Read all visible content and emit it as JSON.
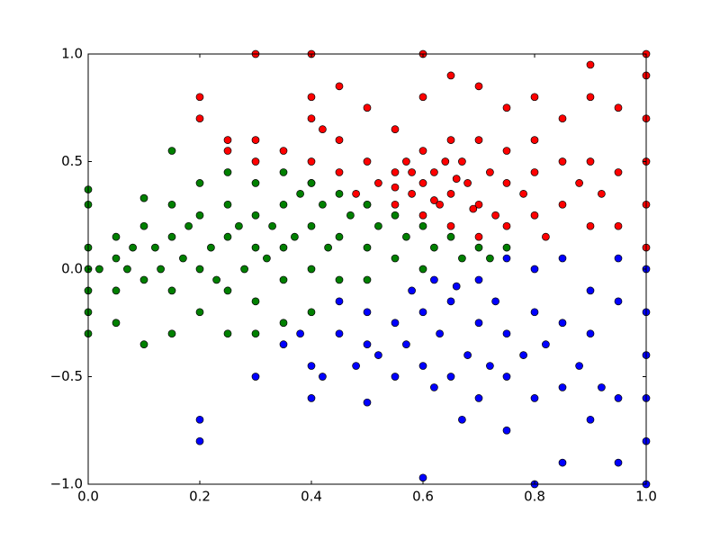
{
  "chart_data": {
    "type": "scatter",
    "xlim": [
      0,
      1
    ],
    "ylim": [
      -1,
      1
    ],
    "xticks": [
      {
        "value": 0,
        "label": "0.0"
      },
      0.2,
      0.4,
      0.6,
      0.8,
      {
        "value": 1,
        "label": "1.0"
      }
    ],
    "yticks": [
      {
        "value": -1,
        "label": "−1.0"
      },
      {
        "value": -0.5,
        "label": "−0.5"
      },
      {
        "value": 0,
        "label": "0.0"
      },
      0.5,
      {
        "value": 1,
        "label": "1.0"
      }
    ],
    "edgecolor": "#000000",
    "series": [
      {
        "color": "#0000ff",
        "x": [
          0.2,
          0.2,
          0.3,
          0.35,
          0.38,
          0.4,
          0.4,
          0.42,
          0.45,
          0.48,
          0.5,
          0.5,
          0.5,
          0.52,
          0.55,
          0.55,
          0.57,
          0.6,
          0.6,
          0.6,
          0.62,
          0.63,
          0.65,
          0.65,
          0.67,
          0.68,
          0.7,
          0.7,
          0.7,
          0.72,
          0.73,
          0.75,
          0.75,
          0.75,
          0.75,
          0.78,
          0.8,
          0.8,
          0.8,
          0.8,
          0.82,
          0.85,
          0.85,
          0.85,
          0.85,
          0.88,
          0.9,
          0.9,
          0.9,
          0.92,
          0.95,
          0.95,
          0.95,
          0.95,
          1.0,
          1.0,
          1.0,
          1.0,
          1.0,
          1.0,
          0.58,
          0.66,
          0.62,
          0.45
        ],
        "values": [
          -0.7,
          -0.8,
          -0.5,
          -0.35,
          -0.3,
          -0.6,
          -0.45,
          -0.5,
          -0.3,
          -0.45,
          -0.62,
          -0.35,
          -0.2,
          -0.4,
          -0.5,
          -0.25,
          -0.35,
          -0.97,
          -0.45,
          -0.2,
          -0.55,
          -0.3,
          -0.5,
          -0.15,
          -0.7,
          -0.4,
          -0.6,
          -0.25,
          -0.05,
          -0.45,
          -0.15,
          -0.75,
          -0.5,
          -0.3,
          0.05,
          -0.4,
          -1.0,
          -0.6,
          -0.2,
          0.0,
          -0.35,
          -0.9,
          -0.55,
          -0.25,
          0.05,
          -0.45,
          -0.7,
          -0.3,
          -0.1,
          -0.55,
          -0.9,
          -0.6,
          -0.15,
          0.05,
          -1.0,
          -0.8,
          -0.6,
          -0.4,
          -0.2,
          0.0,
          -0.1,
          -0.08,
          -0.05,
          -0.15
        ]
      },
      {
        "color": "#ff0000",
        "x": [
          0.2,
          0.2,
          0.25,
          0.25,
          0.3,
          0.3,
          0.3,
          0.35,
          0.4,
          0.4,
          0.4,
          0.4,
          0.4,
          0.42,
          0.45,
          0.45,
          0.45,
          0.48,
          0.5,
          0.5,
          0.5,
          0.52,
          0.55,
          0.55,
          0.55,
          0.57,
          0.58,
          0.6,
          0.6,
          0.6,
          0.6,
          0.6,
          0.62,
          0.63,
          0.65,
          0.65,
          0.65,
          0.65,
          0.67,
          0.68,
          0.7,
          0.7,
          0.7,
          0.7,
          0.72,
          0.73,
          0.75,
          0.75,
          0.75,
          0.75,
          0.78,
          0.8,
          0.8,
          0.8,
          0.8,
          0.82,
          0.85,
          0.85,
          0.85,
          0.88,
          0.9,
          0.9,
          0.9,
          0.9,
          0.92,
          0.95,
          0.95,
          0.95,
          1.0,
          1.0,
          1.0,
          1.0,
          1.0,
          1.0,
          0.55,
          0.62,
          0.66,
          0.69,
          0.58,
          0.64
        ],
        "values": [
          0.8,
          0.7,
          0.6,
          0.55,
          1.0,
          0.6,
          0.5,
          0.55,
          1.0,
          0.8,
          0.7,
          0.5,
          0.4,
          0.65,
          0.85,
          0.6,
          0.45,
          0.35,
          0.75,
          0.5,
          0.3,
          0.4,
          0.65,
          0.45,
          0.3,
          0.5,
          0.35,
          1.0,
          0.8,
          0.55,
          0.4,
          0.25,
          0.45,
          0.3,
          0.9,
          0.6,
          0.35,
          0.2,
          0.5,
          0.4,
          0.85,
          0.6,
          0.3,
          0.15,
          0.45,
          0.25,
          0.75,
          0.55,
          0.4,
          0.2,
          0.35,
          0.8,
          0.6,
          0.45,
          0.25,
          0.15,
          0.7,
          0.5,
          0.3,
          0.4,
          0.95,
          0.8,
          0.5,
          0.2,
          0.35,
          0.75,
          0.45,
          0.2,
          1.0,
          0.9,
          0.7,
          0.5,
          0.3,
          0.1,
          0.38,
          0.32,
          0.42,
          0.28,
          0.45,
          0.5
        ]
      },
      {
        "color": "#008000",
        "x": [
          0.0,
          0.0,
          0.0,
          0.0,
          0.0,
          0.0,
          0.0,
          0.02,
          0.05,
          0.05,
          0.05,
          0.05,
          0.07,
          0.08,
          0.1,
          0.1,
          0.1,
          0.1,
          0.12,
          0.13,
          0.15,
          0.15,
          0.15,
          0.15,
          0.15,
          0.17,
          0.18,
          0.2,
          0.2,
          0.2,
          0.2,
          0.22,
          0.23,
          0.25,
          0.25,
          0.25,
          0.25,
          0.25,
          0.27,
          0.28,
          0.3,
          0.3,
          0.3,
          0.3,
          0.3,
          0.32,
          0.33,
          0.35,
          0.35,
          0.35,
          0.35,
          0.35,
          0.37,
          0.38,
          0.4,
          0.4,
          0.4,
          0.4,
          0.42,
          0.43,
          0.45,
          0.45,
          0.45,
          0.47,
          0.5,
          0.5,
          0.5,
          0.52,
          0.55,
          0.55,
          0.57,
          0.6,
          0.6,
          0.62,
          0.65,
          0.67,
          0.7,
          0.72,
          0.75
        ],
        "values": [
          0.37,
          0.3,
          0.1,
          0.0,
          -0.1,
          -0.2,
          -0.3,
          0.0,
          0.15,
          0.05,
          -0.1,
          -0.25,
          0.0,
          0.1,
          0.33,
          0.2,
          -0.05,
          -0.35,
          0.1,
          0.0,
          0.3,
          0.15,
          -0.1,
          -0.3,
          0.55,
          0.05,
          0.2,
          0.4,
          0.25,
          0.0,
          -0.2,
          0.1,
          -0.05,
          0.45,
          0.3,
          0.15,
          -0.1,
          -0.3,
          0.2,
          0.0,
          0.4,
          0.25,
          0.1,
          -0.15,
          -0.3,
          0.05,
          0.2,
          0.45,
          0.3,
          0.1,
          -0.05,
          -0.25,
          0.15,
          0.35,
          0.4,
          0.2,
          0.0,
          -0.2,
          0.3,
          0.1,
          0.35,
          0.15,
          -0.05,
          0.25,
          0.3,
          0.1,
          -0.05,
          0.2,
          0.25,
          0.05,
          0.15,
          0.2,
          0.0,
          0.1,
          0.15,
          0.05,
          0.1,
          0.05,
          0.1
        ]
      }
    ]
  }
}
